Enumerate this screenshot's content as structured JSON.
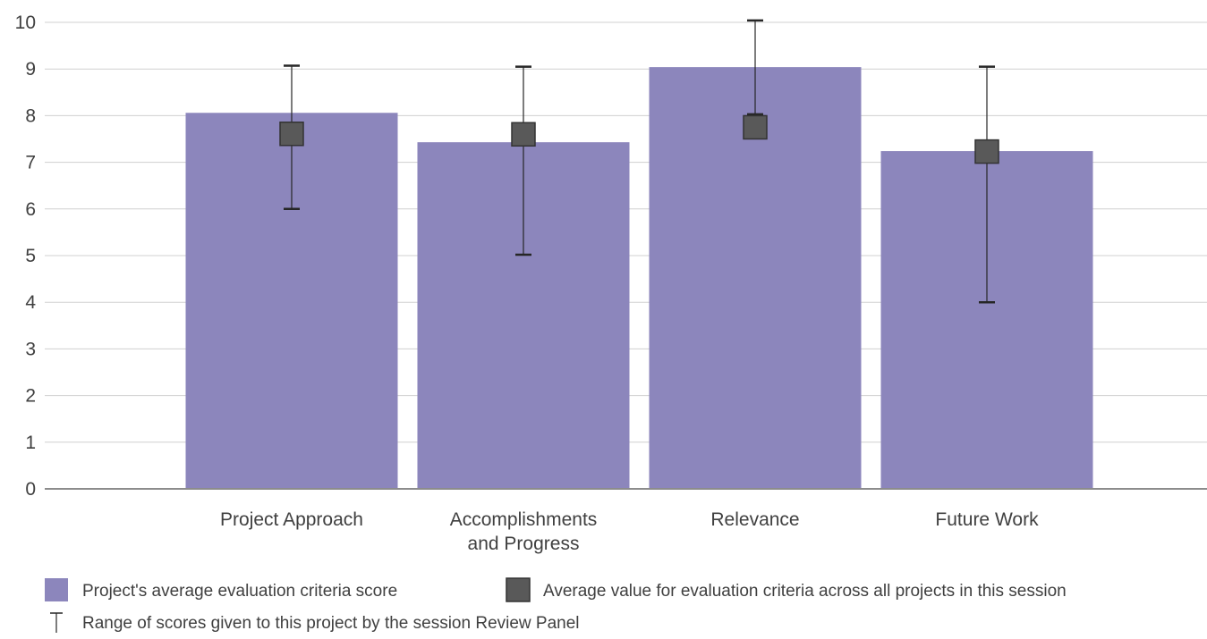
{
  "chart_data": {
    "type": "bar",
    "categories": [
      "Project Approach",
      "Accomplishments and Progress",
      "Relevance",
      "Future Work"
    ],
    "category_lines": [
      [
        "Project Approach"
      ],
      [
        "Accomplishments",
        "and Progress"
      ],
      [
        "Relevance"
      ],
      [
        "Future Work"
      ]
    ],
    "series": [
      {
        "name": "Project's average evaluation criteria score",
        "type": "bar",
        "values": [
          8.06,
          7.43,
          9.04,
          7.24
        ],
        "error_low": [
          6.0,
          5.02,
          8.03,
          4.0
        ],
        "error_high": [
          9.07,
          9.05,
          10.04,
          9.05
        ]
      },
      {
        "name": "Average value for evaluation criteria across all projects in this session",
        "type": "marker",
        "values": [
          7.61,
          7.6,
          7.75,
          7.23
        ]
      }
    ],
    "error_bar_legend": "Range of scores given to this project by the session Review Panel",
    "yticks": [
      "0",
      "1",
      "2",
      "3",
      "4",
      "5",
      "6",
      "7",
      "8",
      "9",
      "10"
    ],
    "ylim": [
      0,
      10
    ],
    "grid": true,
    "legend_position": "bottom-left",
    "title": "",
    "xlabel": "",
    "ylabel": ""
  },
  "colors": {
    "bar": "#8c86bc",
    "marker": "#595959",
    "grid": "#d0d0d0",
    "axis": "#8c8c8c",
    "text": "#404040",
    "errorbar": "#262626"
  }
}
